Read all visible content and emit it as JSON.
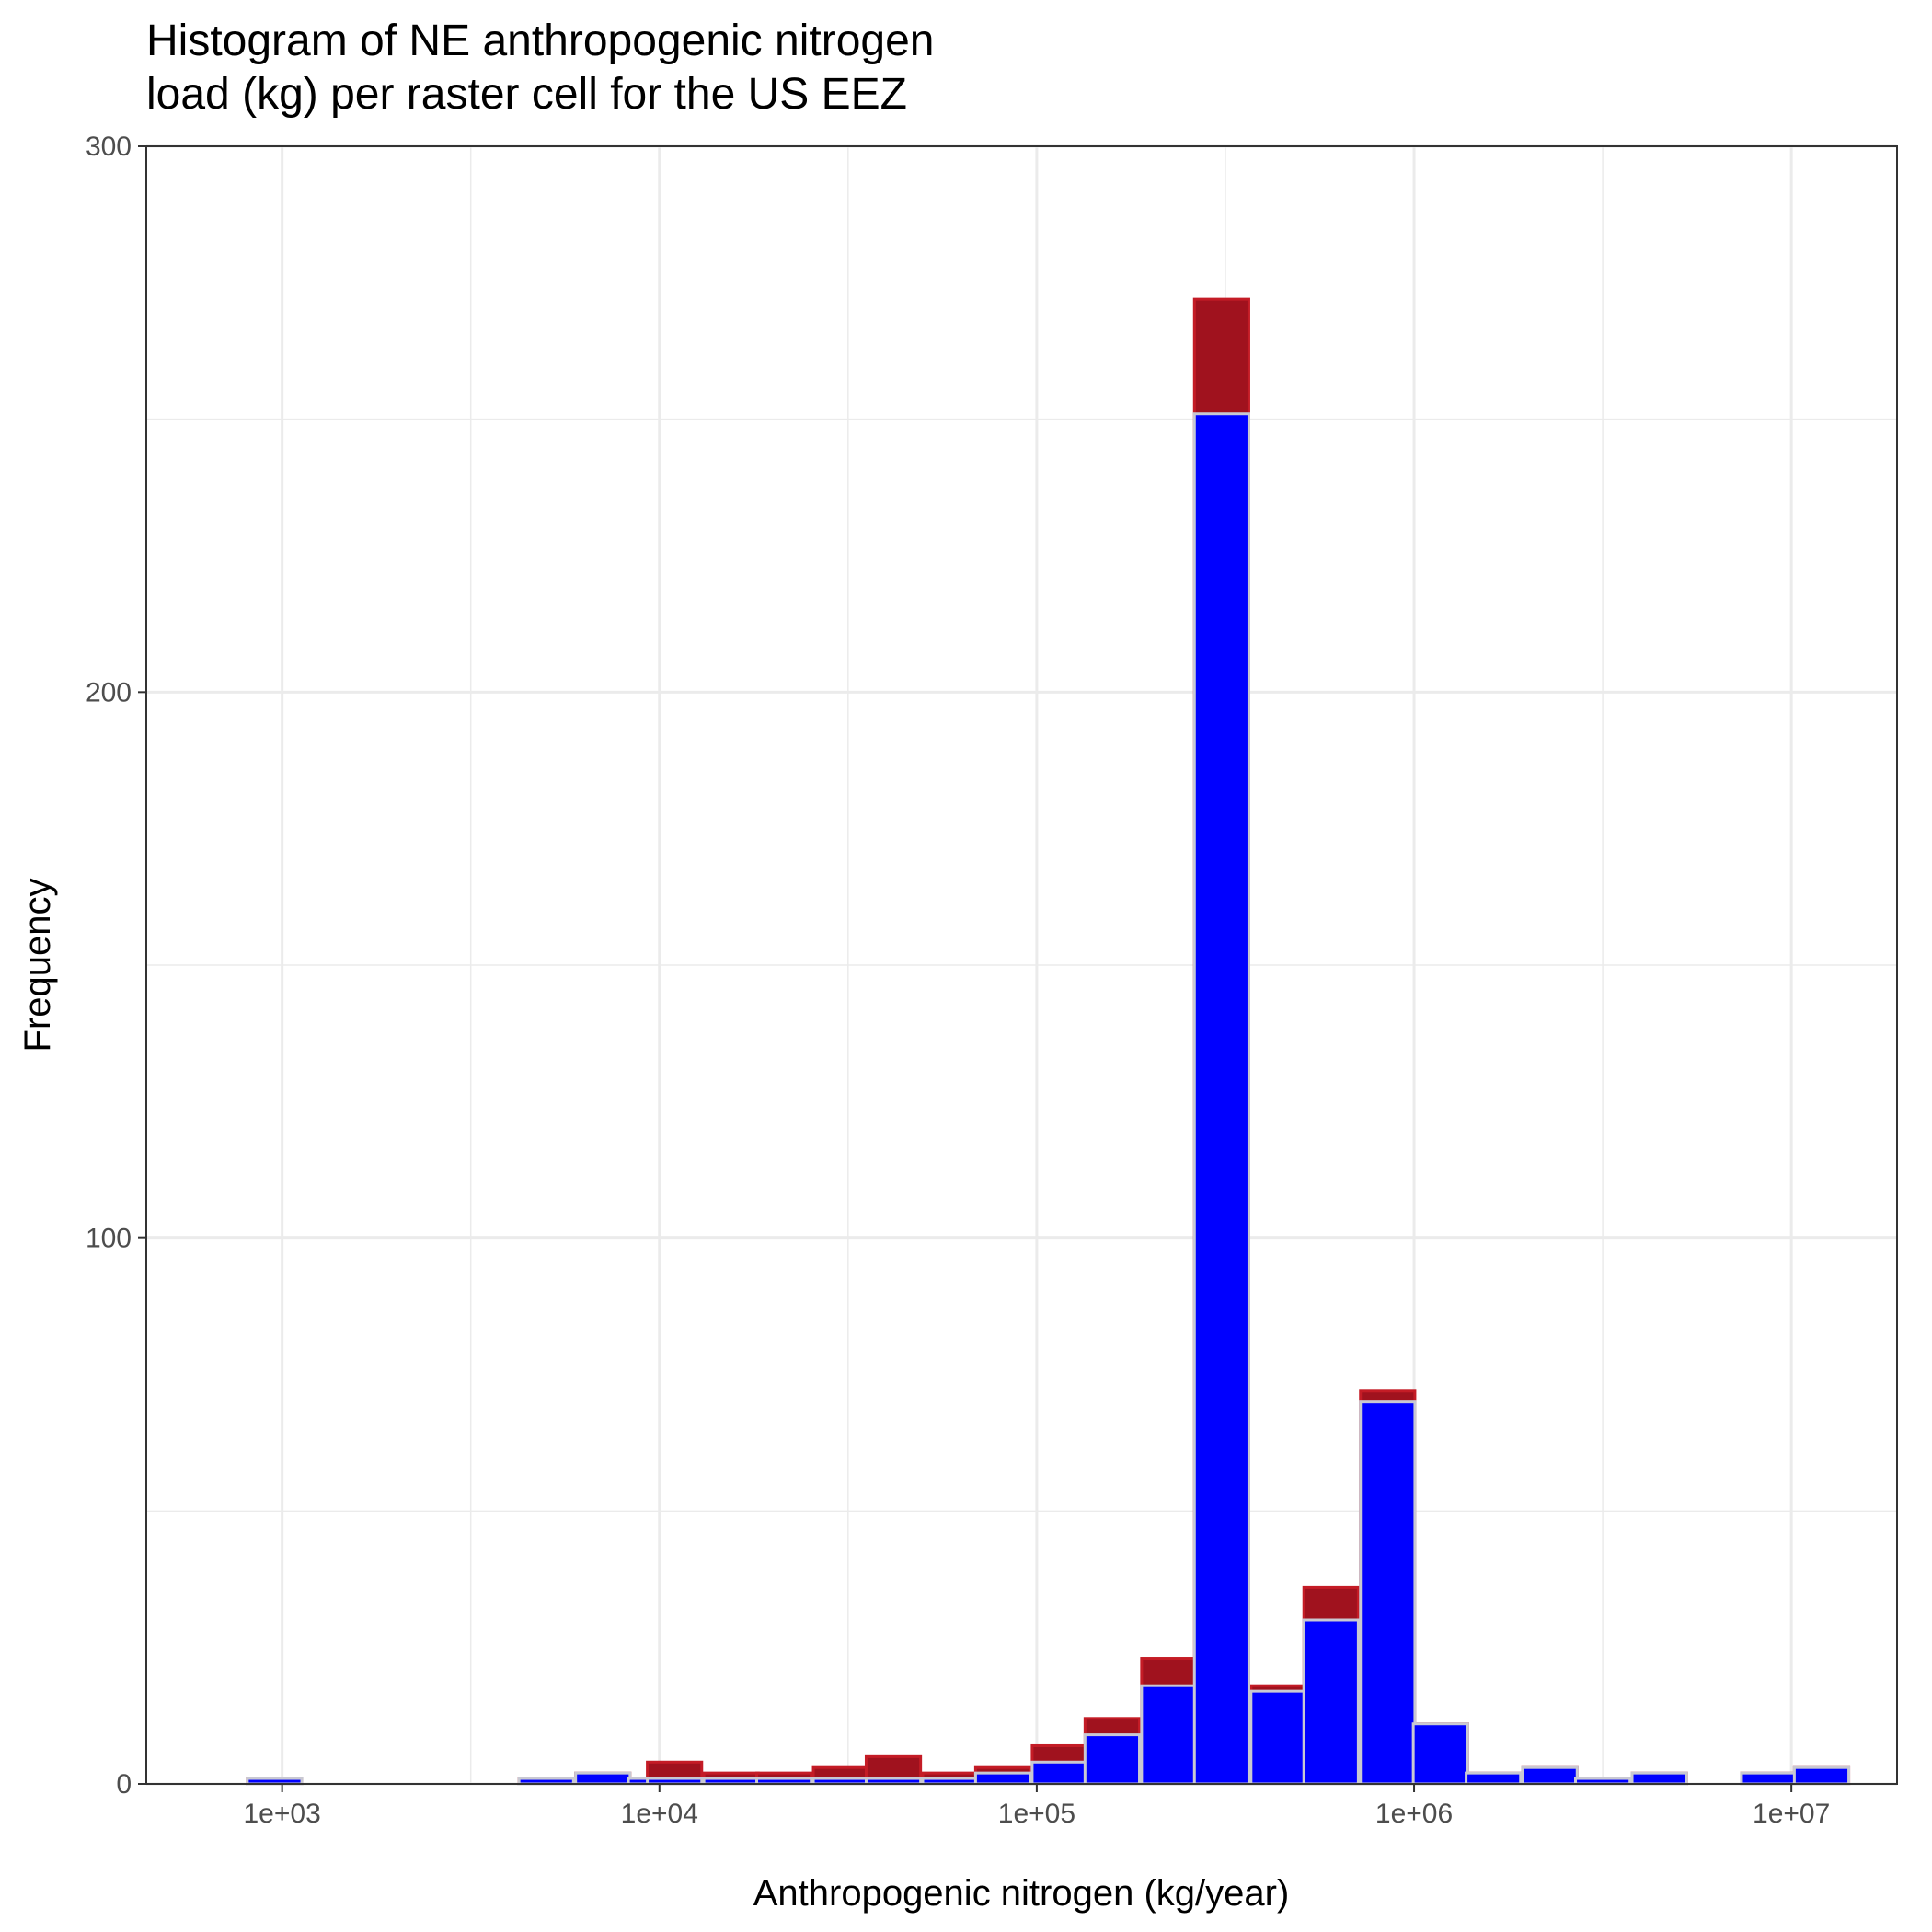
{
  "chart_data": {
    "type": "bar",
    "title_lines": [
      "Histogram of NE anthropogenic nitrogen",
      "load (kg) per raster cell for the US EEZ"
    ],
    "xlabel": "Anthropogenic nitrogen (kg/year)",
    "ylabel": "Frequency",
    "x_scale": "log10",
    "x_range_log10": [
      2.64,
      7.28
    ],
    "x_ticks": [
      {
        "label": "1e+03",
        "log10": 3
      },
      {
        "label": "1e+04",
        "log10": 4
      },
      {
        "label": "1e+05",
        "log10": 5
      },
      {
        "label": "1e+06",
        "log10": 6
      },
      {
        "label": "1e+07",
        "log10": 7
      }
    ],
    "ylim": [
      0,
      300
    ],
    "y_ticks": [
      0,
      100,
      200,
      300
    ],
    "grid": true,
    "bin_width_log10": 0.1443,
    "series": [
      {
        "fill": "#a0121e",
        "outline": "#c41c26",
        "bins": [
          {
            "center_log10": 2.98,
            "count": 1
          },
          {
            "center_log10": 3.7,
            "count": 1
          },
          {
            "center_log10": 3.85,
            "count": 2
          },
          {
            "center_log10": 3.99,
            "count": 1
          },
          {
            "center_log10": 4.04,
            "count": 4
          },
          {
            "center_log10": 4.19,
            "count": 2
          },
          {
            "center_log10": 4.33,
            "count": 2
          },
          {
            "center_log10": 4.48,
            "count": 3
          },
          {
            "center_log10": 4.62,
            "count": 5
          },
          {
            "center_log10": 4.77,
            "count": 2
          },
          {
            "center_log10": 4.91,
            "count": 3
          },
          {
            "center_log10": 5.06,
            "count": 7
          },
          {
            "center_log10": 5.2,
            "count": 12
          },
          {
            "center_log10": 5.35,
            "count": 23
          },
          {
            "center_log10": 5.49,
            "count": 272
          },
          {
            "center_log10": 5.64,
            "count": 18
          },
          {
            "center_log10": 5.78,
            "count": 36
          },
          {
            "center_log10": 5.93,
            "count": 72
          },
          {
            "center_log10": 6.07,
            "count": 11
          },
          {
            "center_log10": 6.21,
            "count": 2
          },
          {
            "center_log10": 6.36,
            "count": 3
          },
          {
            "center_log10": 6.5,
            "count": 1
          },
          {
            "center_log10": 6.65,
            "count": 2
          },
          {
            "center_log10": 6.94,
            "count": 2
          },
          {
            "center_log10": 7.08,
            "count": 3
          }
        ]
      },
      {
        "fill": "#0000ff",
        "outline": "#c8c8d2",
        "bins": [
          {
            "center_log10": 2.98,
            "count": 1
          },
          {
            "center_log10": 3.7,
            "count": 1
          },
          {
            "center_log10": 3.85,
            "count": 2
          },
          {
            "center_log10": 3.99,
            "count": 1
          },
          {
            "center_log10": 4.04,
            "count": 1
          },
          {
            "center_log10": 4.19,
            "count": 1
          },
          {
            "center_log10": 4.33,
            "count": 1
          },
          {
            "center_log10": 4.48,
            "count": 1
          },
          {
            "center_log10": 4.62,
            "count": 1
          },
          {
            "center_log10": 4.77,
            "count": 1
          },
          {
            "center_log10": 4.91,
            "count": 2
          },
          {
            "center_log10": 5.06,
            "count": 4
          },
          {
            "center_log10": 5.2,
            "count": 9
          },
          {
            "center_log10": 5.35,
            "count": 18
          },
          {
            "center_log10": 5.49,
            "count": 251
          },
          {
            "center_log10": 5.64,
            "count": 17
          },
          {
            "center_log10": 5.78,
            "count": 30
          },
          {
            "center_log10": 5.93,
            "count": 70
          },
          {
            "center_log10": 6.07,
            "count": 11
          },
          {
            "center_log10": 6.21,
            "count": 2
          },
          {
            "center_log10": 6.36,
            "count": 3
          },
          {
            "center_log10": 6.5,
            "count": 1
          },
          {
            "center_log10": 6.65,
            "count": 2
          },
          {
            "center_log10": 6.94,
            "count": 2
          },
          {
            "center_log10": 7.08,
            "count": 3
          }
        ]
      }
    ]
  }
}
